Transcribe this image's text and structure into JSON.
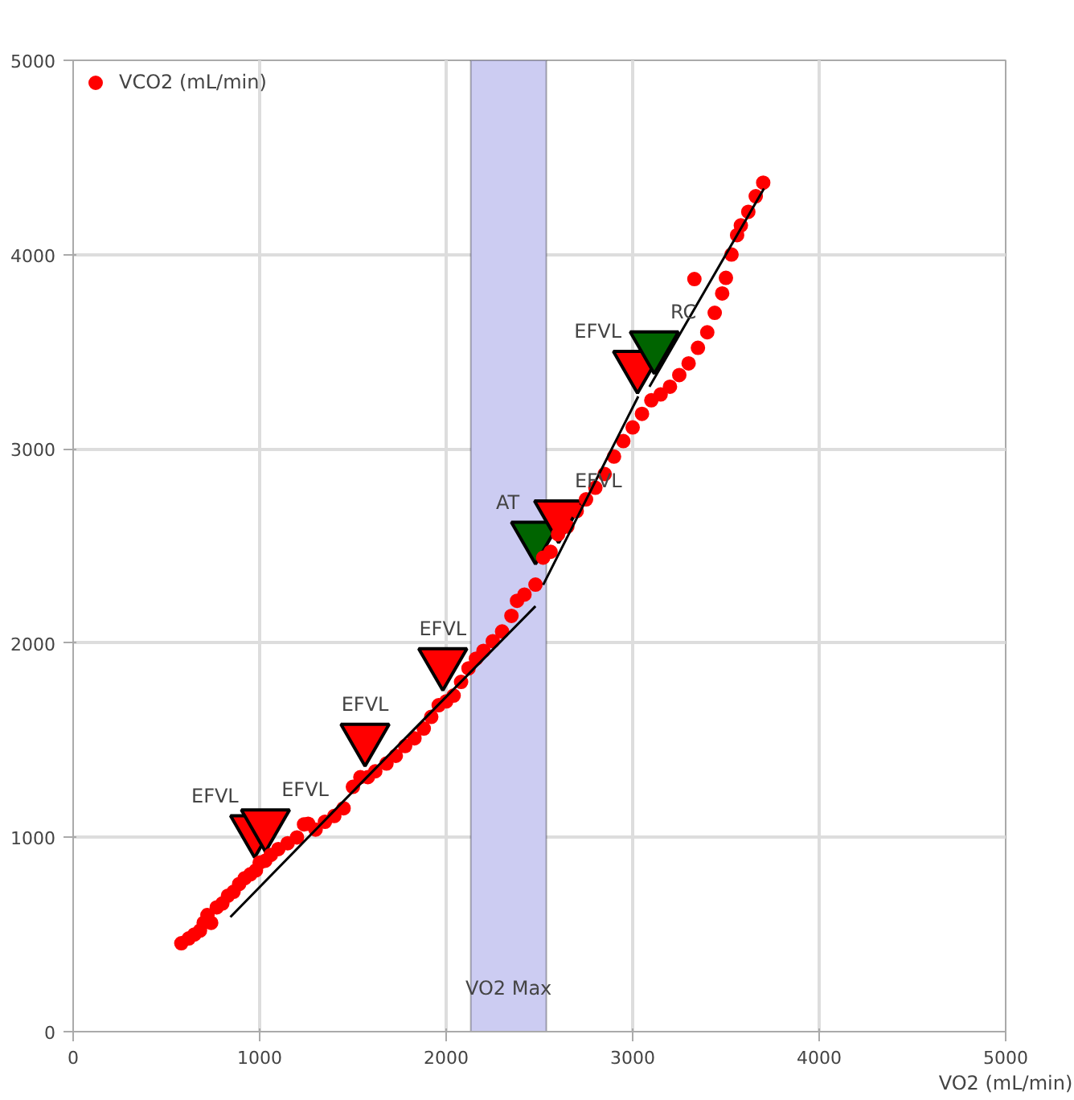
{
  "chart_data": {
    "type": "scatter",
    "xlabel": "VO2 (mL/min)",
    "xlim": [
      0,
      5000
    ],
    "ylim": [
      0,
      5000
    ],
    "xticks": [
      0,
      1000,
      2000,
      3000,
      4000,
      5000
    ],
    "yticks": [
      0,
      1000,
      2000,
      3000,
      4000,
      5000
    ],
    "grid": true,
    "legend": "top left",
    "bands": [
      {
        "axis": "x",
        "from": 2132,
        "to": 2537,
        "label": "VO2 Max",
        "color": "#ccccf2"
      }
    ],
    "series": [
      {
        "name": "VCO2 (mL/min)",
        "color": "#ff0000",
        "marker": "circle",
        "x": [
          580,
          620,
          650,
          680,
          700,
          720,
          740,
          770,
          800,
          830,
          860,
          890,
          920,
          950,
          980,
          1000,
          1030,
          1060,
          1100,
          1150,
          1200,
          1238,
          1260,
          1300,
          1350,
          1400,
          1450,
          1500,
          1540,
          1580,
          1620,
          1680,
          1730,
          1780,
          1830,
          1880,
          1920,
          1960,
          2000,
          2040,
          2080,
          2120,
          2160,
          2200,
          2250,
          2300,
          2350,
          2380,
          2420,
          2479,
          2520,
          2560,
          2600,
          2650,
          2700,
          2750,
          2800,
          2850,
          2900,
          2950,
          3000,
          3050,
          3100,
          3150,
          3200,
          3250,
          3300,
          3331,
          3350,
          3400,
          3440,
          3480,
          3500,
          3530,
          3560,
          3580,
          3620,
          3660,
          3700
        ],
        "values": [
          455,
          480,
          500,
          520,
          560,
          600,
          560,
          640,
          660,
          700,
          720,
          760,
          790,
          810,
          830,
          870,
          880,
          910,
          940,
          970,
          1000,
          1067,
          1070,
          1040,
          1080,
          1110,
          1150,
          1260,
          1310,
          1310,
          1340,
          1380,
          1420,
          1470,
          1510,
          1560,
          1620,
          1680,
          1700,
          1730,
          1800,
          1870,
          1920,
          1960,
          2010,
          2060,
          2140,
          2218,
          2250,
          2301,
          2440,
          2470,
          2560,
          2600,
          2680,
          2740,
          2800,
          2870,
          2960,
          3040,
          3110,
          3180,
          3250,
          3280,
          3320,
          3380,
          3440,
          3874,
          3520,
          3600,
          3700,
          3800,
          3880,
          4000,
          4100,
          4150,
          4220,
          4300,
          4370
        ]
      },
      {
        "color": "#000000",
        "type": "line",
        "x": [
          843,
          1565,
          2479,
          2495,
          2520,
          3030,
          3060,
          3090,
          3704
        ],
        "values": [
          590,
          1300,
          2190,
          null,
          2300,
          3270,
          null,
          3320,
          4340
        ]
      },
      {
        "type": "scatter",
        "marker": "triangle",
        "x": [
          973,
          1031,
          1565,
          1982,
          2479,
          2603,
          3026,
          3116
        ],
        "values": [
          1040,
          1070,
          1510,
          1900,
          2550,
          2660,
          3430,
          3530
        ],
        "colors": [
          "#ff0000",
          "#ff0000",
          "#ff0000",
          "#ff0000",
          "#006400",
          "#ff0000",
          "#ff0000",
          "#006400"
        ],
        "value_labels": [
          "EFVL",
          "EFVL",
          "EFVL",
          "EFVL",
          "AT",
          "EFVL",
          "EFVL",
          "RC"
        ]
      }
    ]
  }
}
